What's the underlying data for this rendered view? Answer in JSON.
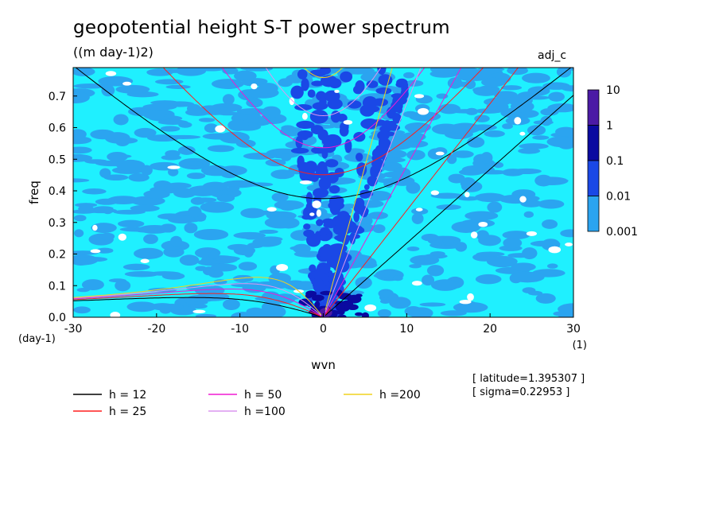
{
  "header": {
    "title": "geopotential height S-T power spectrum",
    "units": "((m day-1)2)",
    "variable": "adj_c"
  },
  "info": {
    "latitude": "[ latitude=1.395307 ]",
    "sigma": "[ sigma=0.22953 ]"
  },
  "colorbar": {
    "labels": [
      "10",
      "1",
      "0.1",
      "0.01",
      "0.001"
    ],
    "colors": [
      "#4b1aa5",
      "#0a0aa0",
      "#1a48e6",
      "#2ba4f0",
      "#1ff0ff"
    ]
  },
  "chart_data": {
    "type": "heatmap",
    "title": "geopotential height S-T power spectrum",
    "subtitle": "((m day-1)2)",
    "xlabel": "wvn",
    "ylabel": "freq",
    "x_unit_label": "(1)",
    "y_unit_label": "(day-1)",
    "xlim": [
      -30,
      30
    ],
    "ylim": [
      0,
      0.79
    ],
    "xticks": [
      -30,
      -20,
      -10,
      0,
      10,
      20,
      30
    ],
    "xtick_labels": [
      "-30",
      "-20",
      "-10",
      "0",
      "10",
      "20",
      "30"
    ],
    "yticks": [
      0,
      0.1,
      0.2,
      0.3,
      0.4,
      0.5,
      0.6,
      0.7
    ],
    "ytick_labels": [
      "0.0",
      "0.1",
      "0.2",
      "0.3",
      "0.4",
      "0.5",
      "0.6",
      "0.7"
    ],
    "colorbar_levels": [
      0.001,
      0.01,
      0.1,
      1,
      10
    ],
    "dispersion_curves": [
      {
        "label": "h = 12",
        "h": 12,
        "color": "#000000"
      },
      {
        "label": "h = 25",
        "h": 25,
        "color": "#ff1e1e"
      },
      {
        "label": "h = 50",
        "h": 50,
        "color": "#f01ad2"
      },
      {
        "label": "h =100",
        "h": 100,
        "color": "#dc96ef"
      },
      {
        "label": "h =200",
        "h": 200,
        "color": "#f0d21e"
      }
    ]
  }
}
